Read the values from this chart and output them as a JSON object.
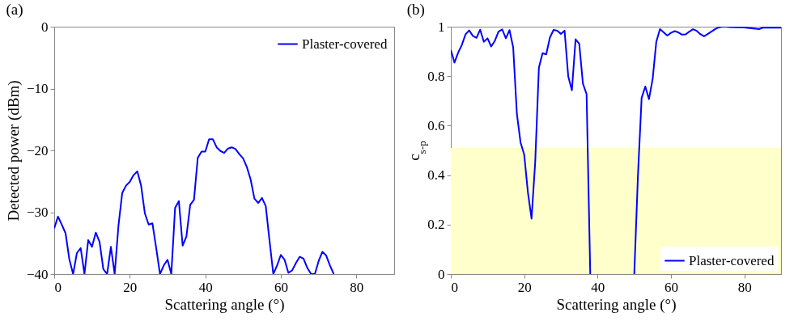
{
  "chart_data": [
    {
      "type": "line",
      "title": "(a)",
      "xlabel": "Scattering angle (°)",
      "ylabel": "Detected power (dBm)",
      "xlim": [
        0,
        90
      ],
      "xticks": [
        0,
        20,
        40,
        60,
        80
      ],
      "ylim": [
        -40,
        0
      ],
      "yticks": [
        0,
        -10,
        -20,
        -30,
        -40
      ],
      "grid": false,
      "legend": "top right",
      "series": [
        {
          "name": "Plaster-covered",
          "color": "#0000ff",
          "x": [
            0,
            1,
            2,
            3,
            4,
            5,
            6,
            7,
            8,
            9,
            10,
            11,
            12,
            13,
            14,
            15,
            16,
            17,
            18,
            19,
            20,
            21,
            22,
            23,
            24,
            25,
            26,
            27,
            28,
            29,
            30,
            31,
            32,
            33,
            34,
            35,
            36,
            37,
            38,
            39,
            40,
            41,
            42,
            43,
            44,
            45,
            46,
            47,
            48,
            49,
            50,
            51,
            52,
            53,
            54,
            55,
            56,
            57,
            58,
            59,
            60,
            61,
            62,
            63,
            64,
            65,
            66,
            67,
            68,
            69,
            70,
            71,
            72,
            73,
            74
          ],
          "values": [
            -32.6,
            -30.7,
            -32.0,
            -33.4,
            -37.6,
            -40,
            -36.6,
            -35.8,
            -40,
            -34.5,
            -35.6,
            -33.3,
            -34.8,
            -39.2,
            -40,
            -35.6,
            -40,
            -32.2,
            -26.9,
            -25.7,
            -25.1,
            -24.0,
            -23.4,
            -25.7,
            -30.2,
            -32.0,
            -31.8,
            -35.8,
            -40,
            -38.6,
            -37.7,
            -40,
            -29.3,
            -28.2,
            -35.4,
            -33.9,
            -28.8,
            -28.0,
            -21.2,
            -20.2,
            -20.2,
            -18.2,
            -18.2,
            -19.5,
            -20.1,
            -20.4,
            -19.7,
            -19.5,
            -19.8,
            -20.6,
            -21.3,
            -22.7,
            -24.7,
            -27.8,
            -28.5,
            -27.7,
            -29.0,
            -34.6,
            -40,
            -38.6,
            -36.9,
            -37.7,
            -39.8,
            -39.4,
            -38.2,
            -37.2,
            -37.5,
            -39.0,
            -40,
            -40,
            -37.9,
            -36.4,
            -37.0,
            -38.6,
            -40
          ]
        }
      ]
    },
    {
      "type": "line",
      "title": "(b)",
      "xlabel": "Scattering angle (°)",
      "ylabel": "c$_{s-p}$",
      "xlim": [
        0,
        90
      ],
      "xticks": [
        0,
        20,
        40,
        60,
        80
      ],
      "ylim": [
        0,
        1
      ],
      "yticks": [
        0,
        0.2,
        0.4,
        0.6,
        0.8,
        1
      ],
      "grid": false,
      "legend": "bottom right",
      "bands": [
        {
          "axis": "y",
          "from": 0,
          "to": 0.51,
          "color": "#ffffcc"
        }
      ],
      "series": [
        {
          "name": "Plaster-covered",
          "color": "#0000ff",
          "x": [
            0,
            1,
            2,
            3,
            4,
            5,
            6,
            7,
            8,
            9,
            10,
            11,
            12,
            13,
            14,
            15,
            16,
            17,
            18,
            19,
            20,
            21,
            22,
            23,
            24,
            25,
            26,
            27,
            28,
            29,
            30,
            31,
            32,
            33,
            34,
            35,
            36,
            37,
            38,
            39,
            49,
            50,
            51,
            52,
            53,
            54,
            55,
            56,
            57,
            58,
            59,
            60,
            61,
            62,
            63,
            64,
            65,
            66,
            67,
            68,
            69,
            70,
            71,
            72,
            73,
            74,
            75,
            76,
            80,
            84,
            85,
            88,
            90
          ],
          "values": [
            0.905,
            0.855,
            0.895,
            0.926,
            0.969,
            0.985,
            0.963,
            0.955,
            0.988,
            0.939,
            0.953,
            0.92,
            0.943,
            0.98,
            0.989,
            0.953,
            0.986,
            0.916,
            0.648,
            0.532,
            0.483,
            0.331,
            0.224,
            0.453,
            0.834,
            0.893,
            0.888,
            0.956,
            0.987,
            0.984,
            0.971,
            0.984,
            0.799,
            0.743,
            0.949,
            0.931,
            0.77,
            0.727,
            0,
            null,
            null,
            0,
            0.4,
            0.712,
            0.758,
            0.707,
            0.788,
            0.939,
            0.99,
            0.977,
            0.964,
            0.975,
            0.982,
            0.977,
            0.968,
            0.969,
            0.98,
            0.99,
            0.983,
            0.97,
            0.961,
            0.97,
            0.98,
            0.99,
            0.997,
            1,
            1,
            0.998,
            0.997,
            0.99,
            0.996,
            0.996,
            0.996
          ]
        }
      ]
    }
  ]
}
